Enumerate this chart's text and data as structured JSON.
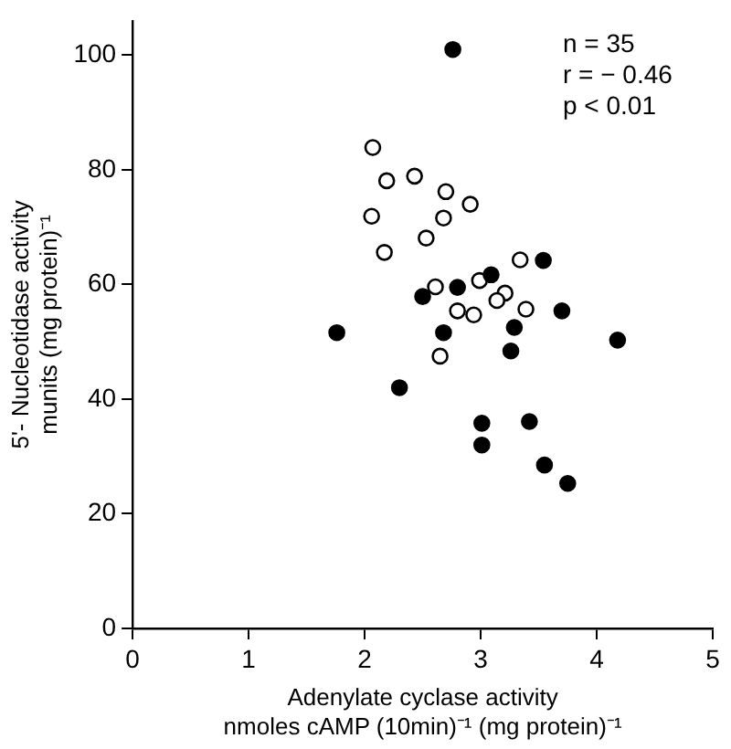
{
  "chart_data": {
    "type": "scatter",
    "xlabel": "Adenylate cyclase activity\nnmoles cAMP (10min)⁻¹ (mg protein)⁻¹",
    "ylabel": "5'- Nucleotidase activity\nmunits (mg protein)⁻¹",
    "xlim": [
      0,
      5
    ],
    "xticks": [
      0,
      1,
      2,
      3,
      4,
      5
    ],
    "ylim": [
      0,
      106
    ],
    "yticks": [
      0,
      20,
      40,
      60,
      80,
      100
    ],
    "grid": false,
    "legend": false,
    "marker": "circle",
    "annotations": [
      "n = 35",
      "r = − 0.46",
      "p < 0.01"
    ],
    "series": [
      {
        "color": "#000000",
        "x": [
          2.76,
          1.76,
          2.3,
          2.68,
          2.5,
          2.8,
          3.09,
          3.54,
          3.7,
          3.29,
          3.26,
          4.18,
          3.01,
          3.01,
          3.42,
          3.55,
          3.75
        ],
        "values": [
          101,
          51.6,
          42,
          51.6,
          57.9,
          59.5,
          61.7,
          64.2,
          55.4,
          52.5,
          48.4,
          50.3,
          35.8,
          32,
          36.1,
          28.5,
          25.3
        ]
      },
      {
        "color": "#ffffff",
        "x": [
          2.07,
          2.19,
          2.43,
          2.7,
          2.91,
          2.06,
          2.68,
          2.53,
          2.17,
          2.61,
          2.99,
          3.21,
          3.14,
          2.8,
          2.94,
          2.65,
          3.34,
          3.39
        ],
        "values": [
          83.9,
          78.1,
          78.9,
          76.2,
          74,
          71.9,
          71.6,
          68.1,
          65.6,
          59.6,
          60.7,
          58.5,
          57.2,
          55.4,
          54.7,
          47.5,
          64.3,
          55.7
        ]
      }
    ]
  }
}
